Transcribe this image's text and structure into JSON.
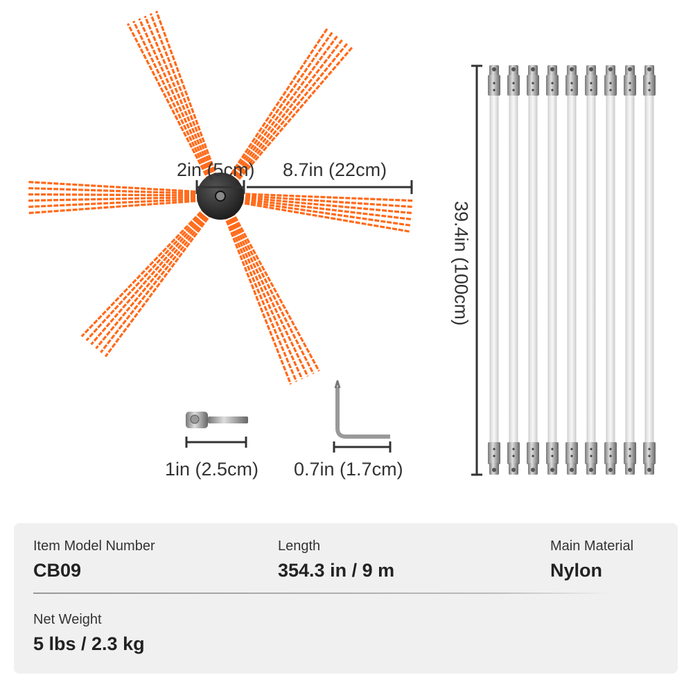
{
  "colors": {
    "bristle": "#ff6a1a",
    "hub": "#2b2b2b",
    "rod": "#e6e6e6",
    "spec_bg": "#f0f0f0"
  },
  "dimensions": {
    "hub_diameter": "2in (5cm)",
    "bristle_length": "8.7in (22cm)",
    "rod_length": "39.4in (100cm)",
    "adapter_length": "1in (2.5cm)",
    "wrench_length": "0.7in (1.7cm)"
  },
  "rod_count": 9,
  "specs": [
    {
      "label": "Item Model Number",
      "value": "CB09"
    },
    {
      "label": "Length",
      "value": "354.3 in / 9 m"
    },
    {
      "label": "Main Material",
      "value": "Nylon"
    },
    {
      "label": "Net Weight",
      "value": "5 lbs / 2.3 kg"
    }
  ]
}
